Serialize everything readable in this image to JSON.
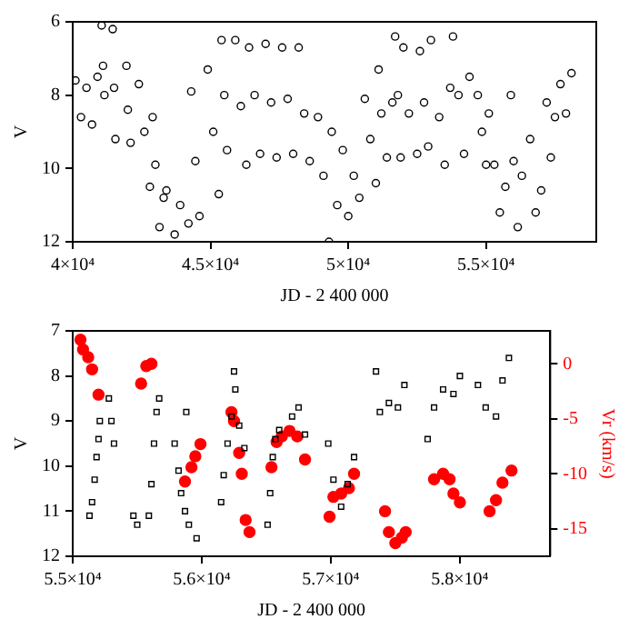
{
  "chart_data": [
    {
      "type": "scatter",
      "xlabel": "JD - 2 400 000",
      "ylabel": "V",
      "xlim": [
        40000,
        59000
      ],
      "ylim": [
        12,
        6
      ],
      "xticks": [
        {
          "value": 40000,
          "label": "4×10⁴"
        },
        {
          "value": 45000,
          "label": "4.5×10⁴"
        },
        {
          "value": 50000,
          "label": "5×10⁴"
        },
        {
          "value": 55000,
          "label": "5.5×10⁴"
        }
      ],
      "yticks": [
        6,
        8,
        10,
        12
      ],
      "grid": false,
      "legend": false,
      "series": [
        {
          "color": "#000000",
          "marker": "circle",
          "x": [
            40100,
            40300,
            40500,
            40700,
            40900,
            41050,
            41100,
            41150,
            41450,
            41500,
            41550,
            41950,
            42000,
            42100,
            42400,
            42600,
            42800,
            42900,
            43000,
            43150,
            43300,
            43400,
            43700,
            43900,
            44200,
            44300,
            44450,
            44600,
            44900,
            45100,
            45300,
            45400,
            45500,
            45600,
            45900,
            46100,
            46300,
            46400,
            46600,
            46800,
            47000,
            47200,
            47400,
            47600,
            47800,
            48000,
            48200,
            48400,
            48600,
            48900,
            49100,
            49300,
            49400,
            49600,
            49800,
            50000,
            50200,
            50400,
            50600,
            50800,
            51000,
            51100,
            51200,
            51400,
            51600,
            51700,
            51800,
            51900,
            52000,
            52200,
            52500,
            52600,
            52750,
            52900,
            53000,
            53300,
            53500,
            53700,
            53800,
            54000,
            54200,
            54400,
            54700,
            54850,
            55000,
            55100,
            55300,
            55500,
            55700,
            55900,
            56000,
            56150,
            56300,
            56600,
            56800,
            57000,
            57200,
            57350,
            57500,
            57700,
            57900,
            58100
          ],
          "values": [
            7.6,
            8.6,
            7.8,
            8.8,
            7.5,
            6.1,
            7.2,
            8.0,
            6.2,
            7.8,
            9.2,
            7.2,
            8.4,
            9.3,
            7.7,
            9.0,
            10.5,
            8.6,
            9.9,
            11.6,
            10.8,
            10.6,
            11.8,
            11.0,
            11.5,
            7.9,
            9.8,
            11.3,
            7.3,
            9.0,
            10.7,
            6.5,
            8.0,
            9.5,
            6.5,
            8.3,
            9.9,
            6.7,
            8.0,
            9.6,
            6.6,
            8.2,
            9.7,
            6.7,
            8.1,
            9.6,
            6.7,
            8.5,
            9.8,
            8.6,
            10.2,
            12.0,
            9.0,
            11.0,
            9.5,
            11.3,
            10.2,
            10.8,
            8.1,
            9.2,
            10.4,
            7.3,
            8.5,
            9.7,
            8.2,
            6.4,
            8.0,
            9.7,
            6.7,
            8.5,
            9.6,
            6.8,
            8.2,
            9.4,
            6.5,
            8.6,
            9.9,
            7.8,
            6.4,
            8.0,
            9.6,
            7.5,
            8.0,
            9.0,
            9.9,
            8.5,
            9.9,
            11.2,
            10.5,
            8.0,
            9.8,
            11.6,
            10.2,
            9.2,
            11.2,
            10.6,
            8.2,
            9.7,
            8.6,
            7.7,
            8.5,
            7.4
          ]
        }
      ]
    },
    {
      "type": "scatter",
      "xlabel": "JD - 2 400 000",
      "ylabel": "V",
      "y2label": "Vr (km/s)",
      "xlim": [
        55000,
        58700
      ],
      "ylim": [
        12,
        7
      ],
      "y2lim": [
        -17.5,
        3
      ],
      "xticks": [
        {
          "value": 55000,
          "label": "5.5×10⁴"
        },
        {
          "value": 56000,
          "label": "5.6×10⁴"
        },
        {
          "value": 57000,
          "label": "5.7×10⁴"
        },
        {
          "value": 58000,
          "label": "5.8×10⁴"
        }
      ],
      "yticks": [
        7,
        8,
        9,
        10,
        11,
        12
      ],
      "y2ticks": [
        0,
        -5,
        -10,
        -15
      ],
      "grid": false,
      "legend": false,
      "series": [
        {
          "color": "#000000",
          "marker": "square",
          "x": [
            55130,
            55150,
            55170,
            55185,
            55200,
            55210,
            55280,
            55300,
            55320,
            55470,
            55500,
            55590,
            55610,
            55630,
            55650,
            55670,
            55790,
            55820,
            55840,
            55870,
            55900,
            55960,
            55880,
            56150,
            56170,
            56200,
            56230,
            56250,
            56260,
            56290,
            56330,
            56510,
            56530,
            56550,
            56570,
            56600,
            56700,
            56750,
            56800,
            56980,
            57020,
            57080,
            57130,
            57180,
            57350,
            57380,
            57450,
            57520,
            57570,
            57750,
            57800,
            57870,
            57950,
            58000,
            58140,
            58200,
            58280,
            58330,
            58380
          ],
          "values": [
            11.1,
            10.8,
            10.3,
            9.8,
            9.4,
            9.0,
            8.5,
            9.0,
            9.5,
            11.1,
            11.3,
            11.1,
            10.4,
            9.5,
            8.8,
            8.5,
            9.5,
            10.1,
            10.6,
            11.0,
            11.3,
            11.6,
            8.8,
            10.8,
            10.2,
            9.5,
            8.9,
            7.9,
            8.3,
            9.1,
            9.6,
            11.3,
            10.6,
            9.8,
            9.4,
            9.2,
            8.9,
            8.7,
            9.3,
            9.5,
            10.3,
            10.9,
            10.4,
            9.8,
            7.9,
            8.8,
            8.6,
            8.7,
            8.2,
            9.4,
            8.7,
            8.3,
            8.4,
            8.0,
            8.2,
            8.7,
            8.9,
            8.1,
            7.6
          ]
        },
        {
          "color": "#ff0000",
          "marker": "circle",
          "axis": "y2",
          "x": [
            55060,
            55080,
            55120,
            55150,
            55200,
            55530,
            55570,
            55610,
            55870,
            55920,
            55950,
            55990,
            56230,
            56250,
            56290,
            56310,
            56340,
            56370,
            56540,
            56580,
            56620,
            56680,
            56740,
            56800,
            56990,
            57020,
            57080,
            57140,
            57180,
            57420,
            57450,
            57500,
            57550,
            57580,
            57800,
            57870,
            57920,
            57950,
            58000,
            58230,
            58280,
            58330,
            58400
          ],
          "values": [
            2.2,
            1.3,
            0.6,
            -0.5,
            -2.8,
            -1.8,
            -0.2,
            0,
            -10.7,
            -9.4,
            -8.4,
            -7.3,
            -4.4,
            -5.2,
            -8.1,
            -10,
            -14.2,
            -15.3,
            -9.4,
            -7.1,
            -6.6,
            -6.1,
            -6.6,
            -8.7,
            -13.9,
            -12.1,
            -11.8,
            -11.3,
            -10,
            -13.4,
            -15.3,
            -16.3,
            -15.8,
            -15.3,
            -10.5,
            -10,
            -10.5,
            -11.8,
            -12.6,
            -13.4,
            -12.4,
            -10.8,
            -9.7
          ]
        }
      ]
    }
  ]
}
